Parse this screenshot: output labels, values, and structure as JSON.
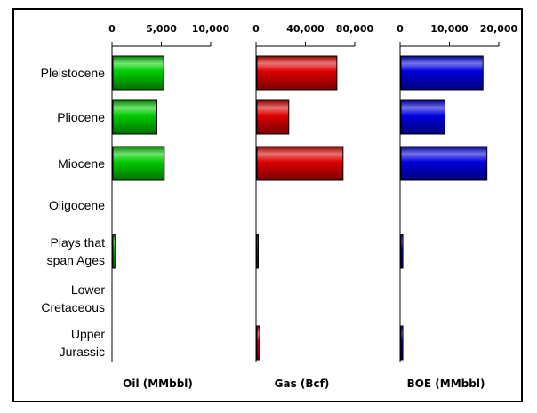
{
  "chart_data": {
    "type": "bar",
    "orientation": "horizontal",
    "categories": [
      [
        "Pleistocene"
      ],
      [
        "Pliocene"
      ],
      [
        "Miocene"
      ],
      [
        "Oligocene"
      ],
      [
        "Plays that",
        "span Ages"
      ],
      [
        "Lower",
        "Cretaceous"
      ],
      [
        "Upper",
        "Jurassic"
      ]
    ],
    "panels": [
      {
        "xlabel": "Oil (MMbbl)",
        "xlim": [
          0,
          10000
        ],
        "ticks": [
          0,
          5000,
          10000
        ],
        "tick_labels": [
          "0",
          "5,000",
          "10,000"
        ],
        "color": "#00cc00",
        "values": [
          5250,
          4550,
          5300,
          0,
          300,
          0,
          0
        ]
      },
      {
        "xlabel": "Gas (Bcf)",
        "xlim": [
          0,
          80000
        ],
        "ticks": [
          0,
          40000,
          80000
        ],
        "tick_labels": [
          "0",
          "40,000",
          "80,000"
        ],
        "color": "#dd0000",
        "values": [
          65500,
          26500,
          70500,
          0,
          1500,
          0,
          3000
        ]
      },
      {
        "xlabel": "BOE (MMbbl)",
        "xlim": [
          0,
          20000
        ],
        "ticks": [
          0,
          10000,
          20000
        ],
        "tick_labels": [
          "0",
          "10,000",
          "20,000"
        ],
        "color": "#0000dd",
        "values": [
          16800,
          9100,
          17600,
          0,
          550,
          0,
          550
        ]
      }
    ]
  }
}
